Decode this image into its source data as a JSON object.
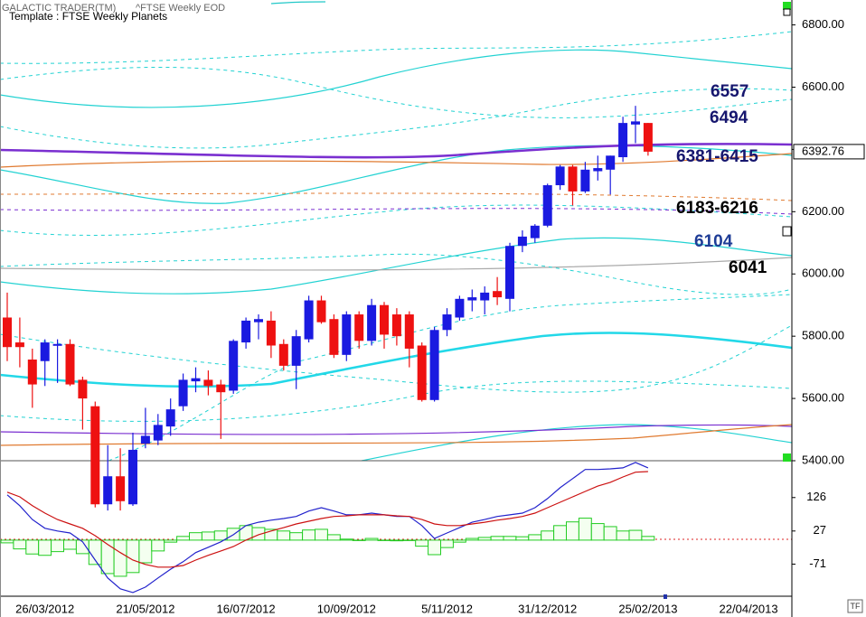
{
  "app": {
    "name": "GALACTIC TRADER(TM)",
    "corner": "TF"
  },
  "chart_data": [
    {
      "type": "candlestick",
      "title": "^FTSE Weekly EOD",
      "subtitle": "Template : FTSE Weekly Planets",
      "categories": [
        null,
        null,
        null,
        "26/03/2012",
        null,
        null,
        null,
        null,
        null,
        null,
        null,
        "21/05/2012",
        null,
        null,
        null,
        null,
        null,
        null,
        null,
        "16/07/2012",
        null,
        null,
        null,
        null,
        null,
        null,
        null,
        "10/09/2012",
        null,
        null,
        null,
        null,
        null,
        null,
        null,
        "5/11/2012",
        null,
        null,
        null,
        null,
        null,
        null,
        null,
        "31/12/2012",
        null,
        null,
        null,
        null,
        null,
        null,
        null,
        "25/02/2013",
        null,
        null,
        null,
        null,
        null,
        null,
        null,
        "22/04/2013",
        null,
        null,
        null
      ],
      "open": [
        5860,
        5780,
        5725,
        5720,
        5770,
        5775,
        5660,
        5575,
        5260,
        5350,
        5260,
        5455,
        5465,
        5510,
        5575,
        5655,
        5660,
        5645,
        5625,
        5780,
        5845,
        5850,
        5775,
        5705,
        5790,
        5915,
        5855,
        5740,
        5870,
        5785,
        5900,
        5870,
        5870,
        5770,
        5595,
        5820,
        5860,
        5915,
        5915,
        5945,
        5920,
        6090,
        6115,
        6155,
        6285,
        6345,
        6265,
        6330,
        6335,
        6375,
        6480,
        6485,
        null,
        null,
        null,
        null,
        null,
        null,
        null,
        null,
        null,
        null,
        null
      ],
      "high": [
        5940,
        5860,
        5760,
        5790,
        5790,
        5790,
        5670,
        5590,
        5450,
        5440,
        5490,
        5570,
        5550,
        5600,
        5680,
        5700,
        5690,
        5660,
        5790,
        5860,
        5870,
        5880,
        5790,
        5820,
        5930,
        5930,
        5870,
        5880,
        5880,
        5920,
        5910,
        5890,
        5880,
        5780,
        5830,
        5890,
        5930,
        5950,
        5960,
        5990,
        6100,
        6140,
        6160,
        6290,
        6350,
        6350,
        6360,
        6380,
        6380,
        6505,
        6540,
        6485,
        null,
        null,
        null,
        null,
        null,
        null,
        null,
        null,
        null,
        null,
        null
      ],
      "low": [
        5720,
        5700,
        5570,
        5640,
        5650,
        5640,
        5500,
        5250,
        5240,
        5240,
        5255,
        5440,
        5450,
        5480,
        5560,
        5620,
        5610,
        5470,
        5615,
        5760,
        5790,
        5730,
        5690,
        5630,
        5780,
        5840,
        5730,
        5720,
        5760,
        5770,
        5760,
        5770,
        5700,
        5590,
        5590,
        5800,
        5850,
        5880,
        5870,
        5900,
        5880,
        6070,
        6100,
        6150,
        6270,
        6220,
        6260,
        6300,
        6255,
        6360,
        6420,
        6380,
        null,
        null,
        null,
        null,
        null,
        null,
        null,
        null,
        null,
        null,
        null
      ],
      "close": [
        5765,
        5765,
        5645,
        5780,
        5775,
        5645,
        5600,
        5260,
        5350,
        5270,
        5435,
        5480,
        5515,
        5565,
        5660,
        5665,
        5640,
        5620,
        5785,
        5850,
        5855,
        5770,
        5705,
        5800,
        5915,
        5845,
        5740,
        5870,
        5785,
        5900,
        5805,
        5800,
        5760,
        5595,
        5820,
        5870,
        5920,
        5925,
        5940,
        5925,
        6090,
        6120,
        6155,
        6285,
        6345,
        6265,
        6335,
        6340,
        6380,
        6485,
        6490,
        6392.76,
        null,
        null,
        null,
        null,
        null,
        null,
        null,
        null,
        null,
        null,
        null
      ],
      "up_color": "#1a1ae0",
      "down_color": "#ee1111",
      "last_value": 6392.76,
      "ylim": [
        5400,
        6880
      ],
      "yticks": [
        {
          "value": 5400,
          "label": "5400.00"
        },
        {
          "value": 5600,
          "label": "5600.00"
        },
        {
          "value": 5800,
          "label": "5800.00"
        },
        {
          "value": 6000,
          "label": "6000.00"
        },
        {
          "value": 6200,
          "label": "6200.00"
        },
        {
          "value": 6400,
          "label": "6400.00"
        },
        {
          "value": 6600,
          "label": "6600.00"
        },
        {
          "value": 6800,
          "label": "6800.00"
        }
      ],
      "annotations": [
        {
          "text": "6557",
          "color": "#16166e"
        },
        {
          "text": "6494",
          "color": "#16166e"
        },
        {
          "text": "6381-6415",
          "color": "#16166e"
        },
        {
          "text": "6183-6216",
          "color": "#000000"
        },
        {
          "text": "6104",
          "color": "#1e3c96"
        },
        {
          "text": "6041",
          "color": "#000000"
        }
      ]
    },
    {
      "type": "macd",
      "series": [
        {
          "name": "MACD",
          "color": "#2222cc",
          "values": [
            134,
            102,
            61,
            35,
            27,
            21,
            -5,
            -59,
            -112,
            -144,
            -155,
            -139,
            -112,
            -86,
            -64,
            -37,
            -21,
            -5,
            16,
            43,
            53,
            59,
            64,
            70,
            86,
            96,
            86,
            75,
            75,
            80,
            75,
            70,
            70,
            43,
            5,
            21,
            37,
            53,
            61,
            70,
            75,
            80,
            96,
            123,
            155,
            182,
            209,
            209,
            211,
            214,
            230,
            214
          ]
        },
        {
          "name": "Signal",
          "color": "#cc1111",
          "values": [
            142,
            128,
            102,
            80,
            61,
            48,
            35,
            13,
            -13,
            -37,
            -59,
            -72,
            -80,
            -80,
            -75,
            -59,
            -45,
            -32,
            -19,
            0,
            16,
            27,
            37,
            48,
            56,
            64,
            70,
            72,
            75,
            75,
            75,
            72,
            70,
            61,
            48,
            43,
            43,
            48,
            53,
            59,
            64,
            70,
            80,
            96,
            112,
            128,
            144,
            160,
            171,
            187,
            201,
            203
          ]
        },
        {
          "name": "Histogram",
          "color": "#22cc22",
          "values": [
            -8,
            -26,
            -41,
            -45,
            -34,
            -27,
            -40,
            -72,
            -99,
            -107,
            -96,
            -67,
            -32,
            -6,
            11,
            22,
            24,
            27,
            35,
            43,
            37,
            32,
            27,
            22,
            30,
            32,
            16,
            3,
            0,
            5,
            0,
            -2,
            0,
            -18,
            -43,
            -22,
            -6,
            5,
            8,
            11,
            11,
            10,
            16,
            27,
            43,
            54,
            65,
            49,
            40,
            27,
            29,
            11
          ]
        }
      ],
      "ylim": [
        -166,
        235
      ],
      "yticks": [
        126,
        27,
        -71
      ]
    }
  ]
}
